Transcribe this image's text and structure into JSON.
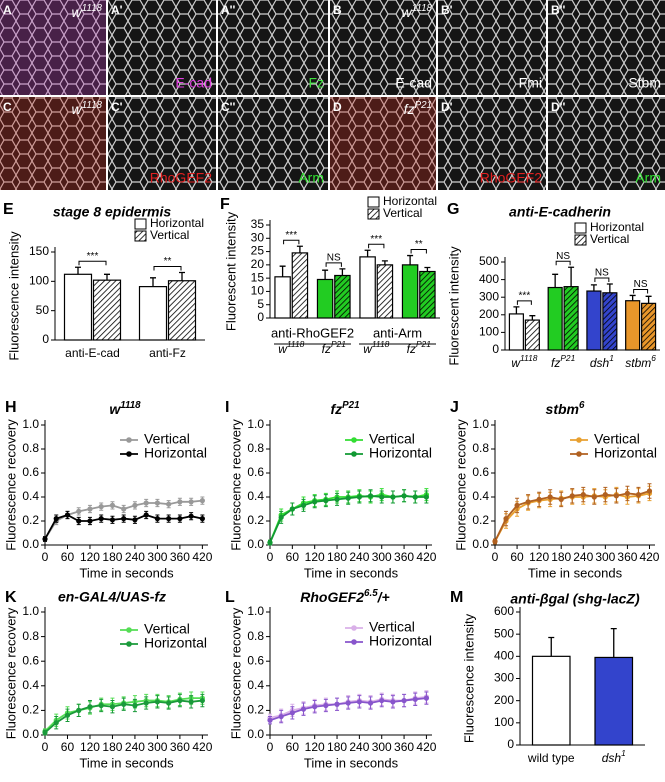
{
  "image_panels": [
    {
      "letter": "A",
      "genotype": {
        "base": "w",
        "sup": "1118"
      }
    },
    {
      "letter": "A'",
      "stain": "E-cad",
      "stain_color": "#e040e0"
    },
    {
      "letter": "A''",
      "stain": "Fz",
      "stain_color": "#40e040"
    },
    {
      "letter": "B",
      "genotype": {
        "base": "w",
        "sup": "1118"
      },
      "stain": "E-cad",
      "stain_color": "#ffffff"
    },
    {
      "letter": "B'",
      "stain": "Fmi",
      "stain_color": "#ffffff"
    },
    {
      "letter": "B''",
      "stain": "Stbm",
      "stain_color": "#ffffff"
    },
    {
      "letter": "C",
      "genotype": {
        "base": "w",
        "sup": "1118"
      }
    },
    {
      "letter": "C'",
      "stain": "RhoGEF2",
      "stain_color": "#e02020"
    },
    {
      "letter": "C''",
      "stain": "Arm",
      "stain_color": "#30e030"
    },
    {
      "letter": "D",
      "genotype": {
        "base": "fz",
        "sup": "P21"
      }
    },
    {
      "letter": "D'",
      "stain": "RhoGEF2",
      "stain_color": "#e02020"
    },
    {
      "letter": "D''",
      "stain": "Arm",
      "stain_color": "#30e030"
    }
  ],
  "chart_data": [
    {
      "type": "bar",
      "letter": "E",
      "title": "stage 8 epidermis",
      "ylabel": "Fluorescence intensity",
      "categories": [
        "anti-E-cad",
        "anti-Fz"
      ],
      "series": [
        {
          "name": "Horizontal",
          "colors": [
            "#ffffff",
            "#ffffff"
          ],
          "hatch": false,
          "values": [
            112,
            91
          ],
          "errors": [
            12,
            15
          ]
        },
        {
          "name": "Vertical",
          "colors": [
            "#ffffff",
            "#ffffff"
          ],
          "hatch": true,
          "values": [
            102,
            101
          ],
          "errors": [
            10,
            14
          ]
        }
      ],
      "significance": [
        "***",
        "**"
      ],
      "ylim": [
        0,
        150
      ],
      "yticks": [
        0,
        50,
        100,
        150
      ]
    },
    {
      "type": "bar",
      "letter": "F",
      "ylabel": "Fluorescent intensity",
      "group_labels": [
        "anti-RhoGEF2",
        "anti-Arm"
      ],
      "categories": [
        {
          "base": "w",
          "sup": "1118"
        },
        {
          "base": "fz",
          "sup": "P21"
        },
        {
          "base": "w",
          "sup": "1118"
        },
        {
          "base": "fz",
          "sup": "P21"
        }
      ],
      "series": [
        {
          "name": "Horizontal",
          "colors": [
            "#ffffff",
            "#22cc22",
            "#ffffff",
            "#22cc22"
          ],
          "hatch": false,
          "values": [
            15.5,
            14.5,
            23,
            20
          ],
          "errors": [
            4,
            3.5,
            2.5,
            3.5
          ]
        },
        {
          "name": "Vertical",
          "colors": [
            "#ffffff",
            "#22cc22",
            "#ffffff",
            "#22cc22"
          ],
          "hatch": true,
          "values": [
            24.5,
            16,
            20,
            17.5
          ],
          "errors": [
            2.5,
            2.5,
            1.5,
            1.5
          ]
        }
      ],
      "significance": [
        "***",
        "NS",
        "***",
        "**"
      ],
      "ylim": [
        0,
        35
      ],
      "yticks": [
        0,
        5,
        10,
        15,
        20,
        25,
        30,
        35
      ]
    },
    {
      "type": "bar",
      "letter": "G",
      "title": "anti-E-cadherin",
      "ylabel": "Fluorescent intensity",
      "categories": [
        {
          "base": "w",
          "sup": "1118"
        },
        {
          "base": "fz",
          "sup": "P21"
        },
        {
          "base": "dsh",
          "sup": "1"
        },
        {
          "base": "stbm",
          "sup": "6"
        }
      ],
      "series": [
        {
          "name": "Horizontal",
          "colors": [
            "#ffffff",
            "#22cc22",
            "#3344cc",
            "#e8962a"
          ],
          "hatch": false,
          "values": [
            205,
            355,
            335,
            280
          ],
          "errors": [
            40,
            75,
            35,
            30
          ]
        },
        {
          "name": "Vertical",
          "colors": [
            "#ffffff",
            "#22cc22",
            "#3344cc",
            "#e8962a"
          ],
          "hatch": true,
          "values": [
            170,
            360,
            325,
            265
          ],
          "errors": [
            25,
            110,
            50,
            40
          ]
        }
      ],
      "significance": [
        "***",
        "NS",
        "NS",
        "NS"
      ],
      "ylim": [
        0,
        500
      ],
      "yticks": [
        0,
        100,
        200,
        300,
        400,
        500
      ]
    },
    {
      "type": "line",
      "letter": "H",
      "title": {
        "base": "w",
        "sup": "1118"
      },
      "xlabel": "Time in seconds",
      "ylabel": "Fluorescence recovery",
      "x": [
        0,
        30,
        60,
        90,
        120,
        150,
        180,
        210,
        240,
        270,
        300,
        330,
        360,
        390,
        420
      ],
      "xlim": [
        0,
        435
      ],
      "xticks": [
        0,
        60,
        120,
        180,
        240,
        300,
        360,
        420
      ],
      "ylim": [
        0,
        1
      ],
      "yticks": [
        {
          "value": 0,
          "label": "0.0"
        },
        {
          "value": 0.2,
          "label": "0.2"
        },
        {
          "value": 0.4,
          "label": "0.4"
        },
        {
          "value": 0.6,
          "label": "0.6"
        },
        {
          "value": 0.8,
          "label": "0.8"
        },
        {
          "value": 1,
          "label": "1.0"
        }
      ],
      "series": [
        {
          "name": "Vertical",
          "color": "#999999",
          "values": [
            0.05,
            0.2,
            0.25,
            0.28,
            0.3,
            0.32,
            0.33,
            0.3,
            0.33,
            0.35,
            0.35,
            0.34,
            0.36,
            0.36,
            0.37
          ],
          "errors": [
            0.02,
            0.03,
            0.03,
            0.03,
            0.03,
            0.03,
            0.03,
            0.03,
            0.03,
            0.03,
            0.03,
            0.03,
            0.03,
            0.03,
            0.03
          ]
        },
        {
          "name": "Horizontal",
          "color": "#000000",
          "values": [
            0.05,
            0.22,
            0.25,
            0.2,
            0.2,
            0.22,
            0.21,
            0.22,
            0.21,
            0.25,
            0.22,
            0.22,
            0.22,
            0.24,
            0.22
          ],
          "errors": [
            0.02,
            0.03,
            0.03,
            0.03,
            0.03,
            0.03,
            0.03,
            0.03,
            0.03,
            0.03,
            0.03,
            0.03,
            0.03,
            0.03,
            0.03
          ]
        }
      ]
    },
    {
      "type": "line",
      "letter": "I",
      "title": {
        "base": "fz",
        "sup": "P21"
      },
      "xlabel": "Time in seconds",
      "ylabel": "Fluorescence recovery",
      "x": [
        0,
        30,
        60,
        90,
        120,
        150,
        180,
        210,
        240,
        270,
        300,
        330,
        360,
        390,
        420
      ],
      "xlim": [
        0,
        435
      ],
      "xticks": [
        0,
        60,
        120,
        180,
        240,
        300,
        360,
        420
      ],
      "ylim": [
        0,
        1
      ],
      "yticks": [
        {
          "value": 0,
          "label": "0.0"
        },
        {
          "value": 0.2,
          "label": "0.2"
        },
        {
          "value": 0.4,
          "label": "0.4"
        },
        {
          "value": 0.6,
          "label": "0.6"
        },
        {
          "value": 0.8,
          "label": "0.8"
        },
        {
          "value": 1,
          "label": "1.0"
        }
      ],
      "series": [
        {
          "name": "Vertical",
          "color": "#33dd33",
          "values": [
            0.02,
            0.25,
            0.3,
            0.35,
            0.37,
            0.38,
            0.4,
            0.4,
            0.41,
            0.4,
            0.42,
            0.4,
            0.41,
            0.4,
            0.42
          ],
          "errors": [
            0.02,
            0.05,
            0.05,
            0.05,
            0.05,
            0.05,
            0.05,
            0.05,
            0.05,
            0.05,
            0.05,
            0.05,
            0.05,
            0.05,
            0.05
          ]
        },
        {
          "name": "Horizontal",
          "color": "#119933",
          "values": [
            0.02,
            0.23,
            0.3,
            0.33,
            0.36,
            0.37,
            0.38,
            0.39,
            0.4,
            0.41,
            0.4,
            0.4,
            0.41,
            0.4,
            0.4
          ],
          "errors": [
            0.02,
            0.05,
            0.05,
            0.05,
            0.05,
            0.05,
            0.05,
            0.05,
            0.05,
            0.05,
            0.05,
            0.05,
            0.05,
            0.05,
            0.05
          ]
        }
      ]
    },
    {
      "type": "line",
      "letter": "J",
      "title": {
        "base": "stbm",
        "sup": "6"
      },
      "xlabel": "Time in seconds",
      "ylabel": "Fluorescence recovery",
      "x": [
        0,
        30,
        60,
        90,
        120,
        150,
        180,
        210,
        240,
        270,
        300,
        330,
        360,
        390,
        420
      ],
      "xlim": [
        0,
        435
      ],
      "xticks": [
        0,
        60,
        120,
        180,
        240,
        300,
        360,
        420
      ],
      "ylim": [
        0,
        1
      ],
      "yticks": [
        {
          "value": 0,
          "label": "0.0"
        },
        {
          "value": 0.2,
          "label": "0.2"
        },
        {
          "value": 0.4,
          "label": "0.4"
        },
        {
          "value": 0.6,
          "label": "0.6"
        },
        {
          "value": 0.8,
          "label": "0.8"
        },
        {
          "value": 1,
          "label": "1.0"
        }
      ],
      "series": [
        {
          "name": "Vertical",
          "color": "#e8a030",
          "values": [
            0.03,
            0.2,
            0.3,
            0.35,
            0.37,
            0.38,
            0.39,
            0.4,
            0.4,
            0.41,
            0.4,
            0.42,
            0.4,
            0.41,
            0.43
          ],
          "errors": [
            0.02,
            0.06,
            0.06,
            0.06,
            0.06,
            0.06,
            0.06,
            0.06,
            0.06,
            0.06,
            0.06,
            0.06,
            0.06,
            0.06,
            0.06
          ]
        },
        {
          "name": "Horizontal",
          "color": "#b06020",
          "values": [
            0.03,
            0.22,
            0.33,
            0.36,
            0.38,
            0.4,
            0.38,
            0.41,
            0.42,
            0.4,
            0.42,
            0.41,
            0.43,
            0.42,
            0.45
          ],
          "errors": [
            0.02,
            0.06,
            0.06,
            0.06,
            0.06,
            0.06,
            0.06,
            0.06,
            0.06,
            0.06,
            0.06,
            0.06,
            0.06,
            0.06,
            0.06
          ]
        }
      ]
    },
    {
      "type": "line",
      "letter": "K",
      "title": "en-GAL4/UAS-fz",
      "xlabel": "Time in seconds",
      "ylabel": "Fluorescence recovery",
      "x": [
        0,
        30,
        60,
        90,
        120,
        150,
        180,
        210,
        240,
        270,
        300,
        330,
        360,
        390,
        420
      ],
      "xlim": [
        0,
        435
      ],
      "xticks": [
        0,
        60,
        120,
        180,
        240,
        300,
        360,
        420
      ],
      "ylim": [
        0,
        1
      ],
      "yticks": [
        {
          "value": 0,
          "label": "0.0"
        },
        {
          "value": 0.2,
          "label": "0.2"
        },
        {
          "value": 0.4,
          "label": "0.4"
        },
        {
          "value": 0.6,
          "label": "0.6"
        },
        {
          "value": 0.8,
          "label": "0.8"
        },
        {
          "value": 1,
          "label": "1.0"
        }
      ],
      "series": [
        {
          "name": "Vertical",
          "color": "#55dd55",
          "values": [
            0.03,
            0.12,
            0.18,
            0.2,
            0.22,
            0.25,
            0.25,
            0.26,
            0.27,
            0.28,
            0.28,
            0.27,
            0.29,
            0.3,
            0.3
          ],
          "errors": [
            0.02,
            0.05,
            0.05,
            0.05,
            0.05,
            0.05,
            0.05,
            0.05,
            0.05,
            0.05,
            0.05,
            0.05,
            0.05,
            0.05,
            0.05
          ]
        },
        {
          "name": "Horizontal",
          "color": "#1a9a3a",
          "values": [
            0.02,
            0.1,
            0.16,
            0.2,
            0.23,
            0.24,
            0.23,
            0.25,
            0.24,
            0.26,
            0.27,
            0.26,
            0.28,
            0.27,
            0.28
          ],
          "errors": [
            0.02,
            0.05,
            0.05,
            0.05,
            0.05,
            0.05,
            0.05,
            0.05,
            0.05,
            0.05,
            0.05,
            0.05,
            0.05,
            0.05,
            0.05
          ]
        }
      ]
    },
    {
      "type": "line",
      "letter": "L",
      "title": {
        "base": "RhoGEF2",
        "sup": "6.5",
        "tail": "/+"
      },
      "xlabel": "Time in seconds",
      "ylabel": "Fluorescence recovery",
      "x": [
        0,
        30,
        60,
        90,
        120,
        150,
        180,
        210,
        240,
        270,
        300,
        330,
        360,
        390,
        420
      ],
      "xlim": [
        0,
        435
      ],
      "xticks": [
        0,
        60,
        120,
        180,
        240,
        300,
        360,
        420
      ],
      "ylim": [
        0,
        1
      ],
      "yticks": [
        {
          "value": 0,
          "label": "0.0"
        },
        {
          "value": 0.2,
          "label": "0.2"
        },
        {
          "value": 0.4,
          "label": "0.4"
        },
        {
          "value": 0.6,
          "label": "0.6"
        },
        {
          "value": 0.8,
          "label": "0.8"
        },
        {
          "value": 1,
          "label": "1.0"
        }
      ],
      "series": [
        {
          "name": "Vertical",
          "color": "#d9b0e8",
          "values": [
            0.14,
            0.16,
            0.2,
            0.22,
            0.24,
            0.25,
            0.25,
            0.27,
            0.28,
            0.27,
            0.29,
            0.28,
            0.28,
            0.3,
            0.31
          ],
          "errors": [
            0.03,
            0.05,
            0.05,
            0.05,
            0.05,
            0.05,
            0.05,
            0.05,
            0.05,
            0.05,
            0.05,
            0.05,
            0.05,
            0.05,
            0.05
          ]
        },
        {
          "name": "Horizontal",
          "color": "#8855cc",
          "values": [
            0.12,
            0.15,
            0.18,
            0.21,
            0.23,
            0.24,
            0.25,
            0.26,
            0.27,
            0.26,
            0.28,
            0.27,
            0.28,
            0.29,
            0.3
          ],
          "errors": [
            0.03,
            0.05,
            0.05,
            0.05,
            0.05,
            0.05,
            0.05,
            0.05,
            0.05,
            0.05,
            0.05,
            0.05,
            0.05,
            0.05,
            0.05
          ]
        }
      ]
    },
    {
      "type": "bar",
      "letter": "M",
      "title": "anti-βgal (shg-lacZ)",
      "ylabel": "Fluorescence intensity",
      "categories": [
        "wild type",
        {
          "base": "dsh",
          "sup": "1"
        }
      ],
      "series": [
        {
          "colors": [
            "#ffffff",
            "#3344cc"
          ],
          "hatch": false,
          "values": [
            400,
            395
          ],
          "errors": [
            85,
            130
          ]
        }
      ],
      "ylim": [
        0,
        600
      ],
      "yticks": [
        0,
        100,
        200,
        300,
        400,
        500,
        600
      ]
    }
  ]
}
